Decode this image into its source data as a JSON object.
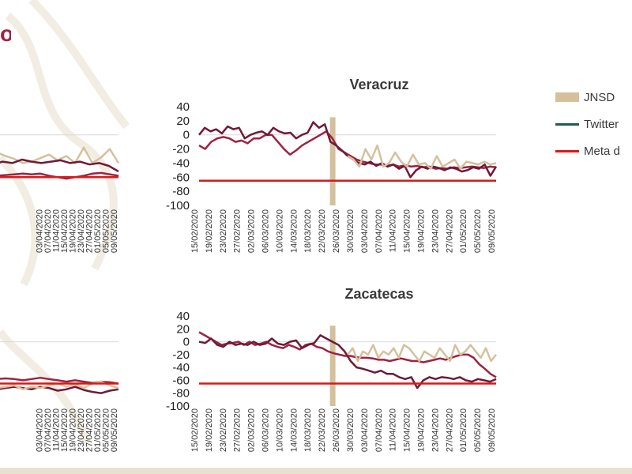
{
  "header": {
    "title_fragment": "o"
  },
  "legend": [
    {
      "label": "JNSD",
      "color": "#d4c19c",
      "kind": "bar"
    },
    {
      "label": "Twitter",
      "color": "#235b4e",
      "kind": "line"
    },
    {
      "label": "Meta d",
      "color": "#d61a1a",
      "kind": "line"
    }
  ],
  "colors": {
    "maroon": "#6f1a36",
    "crimson": "#9f2241",
    "tan": "#d4c19c",
    "target": "#d61a1a"
  },
  "chart_data": [
    {
      "type": "line",
      "title": "",
      "y_ticks": [],
      "x_ticks": [
        "",
        "",
        "03/04/2020",
        "07/04/2020",
        "11/04/2020",
        "15/04/2020",
        "19/04/2020",
        "23/04/2020",
        "27/04/2020",
        "01/05/2020",
        "05/05/2020",
        "09/05/2020"
      ],
      "ylim": [
        -100,
        40
      ],
      "target": -60,
      "series": [
        {
          "name": "",
          "color": "#d4c19c",
          "values": [
            -5,
            -2,
            -18,
            -20,
            -22,
            -30,
            -25,
            -30,
            -34,
            -40,
            -38,
            -33,
            -28,
            -36,
            -30,
            -40,
            -18,
            -40,
            -32,
            -20,
            -40
          ]
        },
        {
          "name": "",
          "color": "#6f1a36",
          "values": [
            -32,
            -30,
            -28,
            -30,
            -36,
            -42,
            -38,
            -40,
            -35,
            -38,
            -40,
            -38,
            -36,
            -40,
            -38,
            -42,
            -40,
            -44,
            -52
          ]
        },
        {
          "name": "",
          "color": "#9f2241",
          "values": [
            -50,
            -50,
            -48,
            -52,
            -55,
            -55,
            -58,
            -57,
            -56,
            -55,
            -56,
            -55,
            -58,
            -60,
            -62,
            -60,
            -58,
            -55,
            -54,
            -56,
            -58
          ]
        }
      ]
    },
    {
      "type": "line",
      "title": "Veracruz",
      "y_ticks": [
        "40",
        "20",
        "0",
        "-20",
        "-40",
        "-60",
        "-80",
        "-100"
      ],
      "x_ticks": [
        "15/02/2020",
        "19/02/2020",
        "23/02/2020",
        "27/02/2020",
        "02/03/2020",
        "06/03/2020",
        "10/03/2020",
        "14/03/2020",
        "18/03/2020",
        "22/03/2020",
        "26/03/2020",
        "30/03/2020",
        "03/04/2020",
        "07/04/2020",
        "11/04/2020",
        "15/04/2020",
        "19/04/2020",
        "23/04/2020",
        "27/04/2020",
        "01/05/2020",
        "05/05/2020",
        "09/05/2020"
      ],
      "ylim": [
        -100,
        40
      ],
      "target": -65,
      "jnsd_date": "23/03/2020",
      "series": [
        {
          "name": "",
          "color": "#9f2241",
          "values": [
            -15,
            -20,
            -10,
            -5,
            -3,
            -5,
            -10,
            -8,
            -12,
            -5,
            -5,
            0,
            0,
            -10,
            -20,
            -28,
            -22,
            -15,
            -10,
            -5,
            0,
            5,
            -5,
            -20,
            -25,
            -30,
            -35,
            -38,
            -40,
            -42,
            -42,
            -44,
            -42,
            -45,
            -43,
            -45,
            -44,
            -46,
            -45,
            -48,
            -47,
            -48,
            -46,
            -47,
            -46,
            -45,
            -46,
            -47,
            -45,
            -46
          ]
        },
        {
          "name": "",
          "color": "#6f1a36",
          "values": [
            0,
            10,
            5,
            8,
            2,
            12,
            8,
            10,
            -5,
            0,
            3,
            5,
            0,
            10,
            5,
            2,
            3,
            -5,
            0,
            3,
            18,
            10,
            15,
            -10,
            -15,
            -22,
            -30,
            -35,
            -40,
            -42,
            -38,
            -44,
            -40,
            -45,
            -42,
            -48,
            -44,
            -60,
            -50,
            -45,
            -48,
            -45,
            -47,
            -50,
            -46,
            -48,
            -52,
            -50,
            -46,
            -48,
            -42,
            -58,
            -45
          ]
        },
        {
          "name": "",
          "color": "#d4c19c",
          "values": [
            -30,
            -35,
            -45,
            -20,
            -35,
            -15,
            -45,
            -40,
            -25,
            -38,
            -45,
            -28,
            -42,
            -40,
            -48,
            -30,
            -45,
            -40,
            -35,
            -48,
            -38,
            -40,
            -42,
            -38,
            -42,
            -40
          ]
        }
      ]
    },
    {
      "type": "line",
      "title": "",
      "y_ticks": [],
      "x_ticks": [
        "",
        "",
        "03/04/2020",
        "07/04/2020",
        "11/04/2020",
        "15/04/2020",
        "19/04/2020",
        "23/04/2020",
        "27/04/2020",
        "01/05/2020",
        "05/05/2020",
        "09/05/2020"
      ],
      "ylim": [
        -100,
        40
      ],
      "target": -65,
      "series": [
        {
          "name": "",
          "color": "#9f2241",
          "values": [
            -30,
            -40,
            -48,
            -52,
            -55,
            -55,
            -58,
            -57,
            -58,
            -60,
            -58,
            -56,
            -58,
            -60,
            -62,
            -60,
            -62,
            -64,
            -62,
            -63,
            -65
          ]
        },
        {
          "name": "",
          "color": "#6f1a36",
          "values": [
            -55,
            -60,
            -68,
            -72,
            -70,
            -75,
            -74,
            -72,
            -70,
            -72,
            -74,
            -70,
            -72,
            -76,
            -74,
            -70,
            -75,
            -78,
            -80,
            -76,
            -74
          ]
        },
        {
          "name": "",
          "color": "#d4c19c",
          "values": [
            -60,
            -72,
            -68,
            -75,
            -70,
            -65,
            -72,
            -70,
            -68,
            -74,
            -70,
            -72,
            -68,
            -65,
            -70,
            -66,
            -72,
            -65,
            -62,
            -68,
            -72
          ]
        }
      ]
    },
    {
      "type": "line",
      "title": "Zacatecas",
      "y_ticks": [
        "40",
        "20",
        "0",
        "-20",
        "-40",
        "-60",
        "-80",
        "-100"
      ],
      "x_ticks": [
        "15/02/2020",
        "19/02/2020",
        "23/02/2020",
        "27/02/2020",
        "02/03/2020",
        "06/03/2020",
        "10/03/2020",
        "14/03/2020",
        "18/03/2020",
        "22/03/2020",
        "26/03/2020",
        "30/03/2020",
        "03/04/2020",
        "07/04/2020",
        "11/04/2020",
        "15/04/2020",
        "19/04/2020",
        "23/04/2020",
        "27/04/2020",
        "01/05/2020",
        "05/05/2020",
        "09/05/2020"
      ],
      "ylim": [
        -100,
        40
      ],
      "target": -65,
      "jnsd_date": "23/03/2020",
      "series": [
        {
          "name": "",
          "color": "#9f2241",
          "values": [
            15,
            10,
            5,
            0,
            -5,
            -3,
            -2,
            0,
            -5,
            0,
            -5,
            -3,
            0,
            -5,
            -8,
            -10,
            -5,
            -8,
            -12,
            -5,
            -3,
            -8,
            -10,
            -15,
            -18,
            -20,
            -22,
            -22,
            -24,
            -25,
            -25,
            -26,
            -28,
            -28,
            -30,
            -28,
            -26,
            -28,
            -30,
            -30,
            -32,
            -30,
            -28,
            -26,
            -28,
            -25,
            -22,
            -20,
            -20,
            -25,
            -35,
            -42,
            -50,
            -55
          ]
        },
        {
          "name": "",
          "color": "#6f1a36",
          "values": [
            0,
            -2,
            5,
            -5,
            -8,
            0,
            -5,
            -3,
            -5,
            0,
            -5,
            -3,
            5,
            -3,
            -5,
            0,
            2,
            -10,
            -5,
            -2,
            10,
            5,
            0,
            -5,
            -15,
            -30,
            -40,
            -42,
            -45,
            -48,
            -45,
            -50,
            -50,
            -55,
            -58,
            -55,
            -72,
            -60,
            -55,
            -58,
            -55,
            -56,
            -58,
            -55,
            -60,
            -62,
            -58,
            -60,
            -62,
            -58
          ]
        },
        {
          "name": "",
          "color": "#d4c19c",
          "values": [
            -20,
            -10,
            -30,
            -15,
            -20,
            -5,
            -25,
            -15,
            -20,
            -10,
            -25,
            -5,
            -10,
            -20,
            -30,
            -15,
            -20,
            -25,
            -10,
            -20,
            -30,
            -5,
            -20,
            -15,
            -5,
            -15,
            -25,
            -10,
            -30,
            -20
          ]
        }
      ]
    }
  ]
}
